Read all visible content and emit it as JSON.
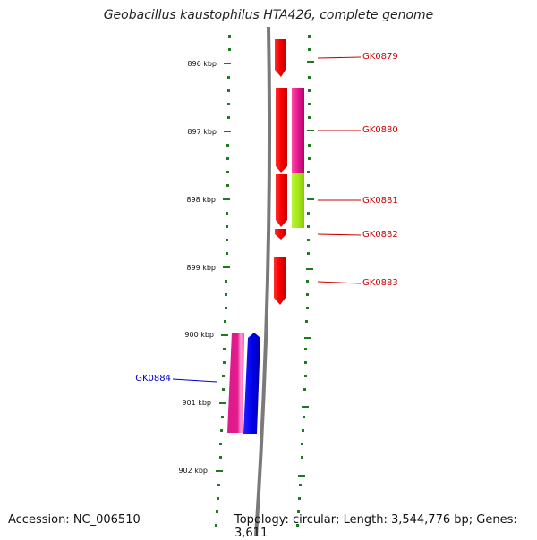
{
  "title": "Geobacillus kaustophilus HTA426, complete genome",
  "footer": {
    "accession": "Accession: NC_006510",
    "stats": "Topology: circular; Length: 3,544,776 bp; Genes: 3,611"
  },
  "colors": {
    "backbone": "#7a7a7a",
    "ticks": "#1f7a1f",
    "forward_label": "#cc0000",
    "reverse_label": "#0000cc",
    "red": "#ff0000",
    "magenta": "#e01a8c",
    "lime": "#a6e81c",
    "blue": "#0000ee"
  },
  "scale": {
    "labels": [
      "896 kbp",
      "897 kbp",
      "898 kbp",
      "899 kbp",
      "900 kbp",
      "901 kbp",
      "902 kbp"
    ]
  },
  "genes": [
    {
      "name": "GK0879",
      "strand": "forward"
    },
    {
      "name": "GK0880",
      "strand": "forward"
    },
    {
      "name": "GK0881",
      "strand": "forward"
    },
    {
      "name": "GK0882",
      "strand": "forward"
    },
    {
      "name": "GK0883",
      "strand": "forward"
    },
    {
      "name": "GK0884",
      "strand": "reverse"
    }
  ]
}
